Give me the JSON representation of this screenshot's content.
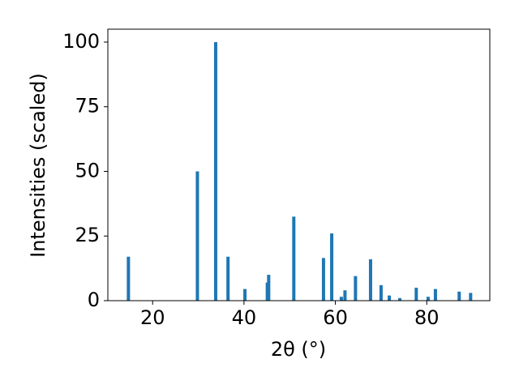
{
  "chart_data": {
    "type": "bar",
    "xlabel": "2θ (°)",
    "ylabel": "Intensities (scaled)",
    "x": [
      14.7,
      29.8,
      33.8,
      36.5,
      40.2,
      45.1,
      45.4,
      50.9,
      57.4,
      59.2,
      61.3,
      62.1,
      64.4,
      67.7,
      70.0,
      71.8,
      74.1,
      77.7,
      80.3,
      81.9,
      87.1,
      89.6
    ],
    "values": [
      17,
      50,
      100,
      17,
      4.5,
      7,
      10,
      32.5,
      16.5,
      26,
      1.5,
      4,
      9.5,
      16,
      6,
      2,
      1,
      5,
      1.5,
      4.5,
      3.5,
      3
    ],
    "color": "#1f77b4",
    "xlim": [
      10.2,
      93.8
    ],
    "ylim": [
      0,
      105
    ],
    "xticks": [
      20,
      40,
      60,
      80
    ],
    "yticks": [
      0,
      25,
      50,
      75,
      100
    ]
  }
}
